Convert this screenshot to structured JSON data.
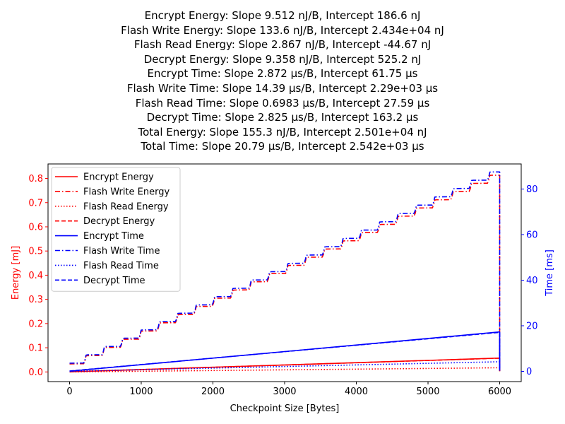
{
  "chart_data": {
    "type": "line",
    "title_lines": [
      "Encrypt Energy: Slope 9.512 nJ/B, Intercept 186.6 nJ",
      "Flash Write Energy: Slope 133.6 nJ/B, Intercept 2.434e+04 nJ",
      "Flash Read Energy: Slope 2.867 nJ/B, Intercept -44.67 nJ",
      "Decrypt Energy: Slope 9.358 nJ/B, Intercept 525.2 nJ",
      "Encrypt Time: Slope 2.872 μs/B, Intercept 61.75 μs",
      "Flash Write Time: Slope 14.39 μs/B, Intercept 2.29e+03 μs",
      "Flash Read Time: Slope 0.6983 μs/B, Intercept 27.59 μs",
      "Decrypt Time: Slope 2.825 μs/B, Intercept 163.2 μs",
      "Total Energy: Slope 155.3 nJ/B, Intercept 2.501e+04 nJ",
      "Total Time: Slope 20.79 μs/B, Intercept 2.542e+03 μs"
    ],
    "xlabel": "Checkpoint Size [Bytes]",
    "ylabel_left": "Energy [mJ]",
    "ylabel_right": "Time [ms]",
    "xlim": [
      -300,
      6300
    ],
    "ylim_left": [
      -0.04,
      0.86
    ],
    "ylim_right": [
      -4.5,
      91
    ],
    "x_ticks": [
      0,
      1000,
      2000,
      3000,
      4000,
      5000,
      6000
    ],
    "y_ticks_left": [
      0.0,
      0.1,
      0.2,
      0.3,
      0.4,
      0.5,
      0.6,
      0.7,
      0.8
    ],
    "y_ticks_right": [
      0,
      20,
      40,
      60,
      80
    ],
    "grid": false,
    "legend_position": "top-left",
    "colors": {
      "energy": "#ff0000",
      "time": "#0000ff"
    },
    "x_range": [
      0,
      6000
    ],
    "step_period_bytes": 256,
    "series": [
      {
        "name": "Encrypt Energy",
        "axis": "left",
        "color": "#ff0000",
        "style": "solid",
        "slope": 9.512e-06,
        "intercept": 0.0001866,
        "unit_note": "mJ",
        "endpoint": [
          6000,
          0.0573
        ]
      },
      {
        "name": "Flash Write Energy",
        "axis": "left",
        "color": "#ff0000",
        "style": "dashdot",
        "model": "step",
        "start_value": 0.0334,
        "end_value": 0.8135,
        "endpoint": [
          6000,
          0.8135
        ]
      },
      {
        "name": "Flash Read Energy",
        "axis": "left",
        "color": "#ff0000",
        "style": "dotted",
        "slope": 2.867e-06,
        "intercept": -4.467e-05,
        "endpoint": [
          6000,
          0.0172
        ]
      },
      {
        "name": "Decrypt Energy",
        "axis": "left",
        "color": "#ff0000",
        "style": "dashed",
        "slope": 9.358e-06,
        "intercept": 0.0005252,
        "endpoint": [
          6000,
          0.0567
        ]
      },
      {
        "name": "Encrypt Time",
        "axis": "right",
        "color": "#0000ff",
        "style": "solid",
        "slope": 0.002872,
        "intercept": 0.06175,
        "endpoint": [
          6000,
          17.29
        ]
      },
      {
        "name": "Flash Write Time",
        "axis": "right",
        "color": "#0000ff",
        "style": "dashdot",
        "model": "step",
        "start_value": 3.6,
        "end_value": 87.5,
        "endpoint": [
          6000,
          87.5
        ]
      },
      {
        "name": "Flash Read Time",
        "axis": "right",
        "color": "#0000ff",
        "style": "dotted",
        "slope": 0.0006983,
        "intercept": 0.02759,
        "endpoint": [
          6000,
          4.22
        ]
      },
      {
        "name": "Decrypt Time",
        "axis": "right",
        "color": "#0000ff",
        "style": "dashed",
        "slope": 0.002825,
        "intercept": 0.1632,
        "endpoint": [
          6000,
          17.1
        ]
      }
    ]
  }
}
